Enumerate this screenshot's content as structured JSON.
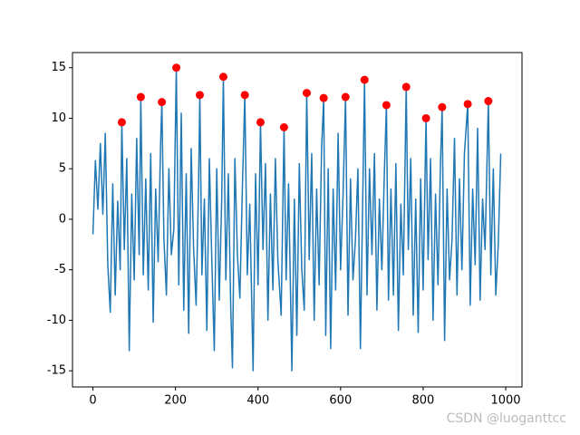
{
  "chart_data": {
    "type": "line",
    "xlim": [
      -49.5,
      1039.5
    ],
    "xticks": [
      0,
      200,
      400,
      600,
      800,
      1000
    ],
    "ylim": [
      -16.6,
      16.5
    ],
    "yticks": [
      -15,
      -10,
      -5,
      0,
      5,
      10,
      15
    ],
    "grid": false,
    "series": [
      {
        "color": "#1f77b4",
        "kind": "line",
        "x": [
          0,
          6,
          12,
          18,
          24,
          30,
          36,
          42,
          48,
          54,
          60,
          66,
          70,
          76,
          82,
          88,
          94,
          100,
          106,
          112,
          116,
          122,
          128,
          134,
          140,
          146,
          152,
          158,
          164,
          167,
          172,
          178,
          184,
          190,
          196,
          202,
          208,
          214,
          220,
          226,
          232,
          238,
          244,
          250,
          256,
          259,
          264,
          270,
          276,
          282,
          288,
          294,
          300,
          306,
          312,
          316,
          322,
          328,
          334,
          338,
          344,
          350,
          356,
          362,
          368,
          374,
          380,
          388,
          394,
          400,
          406,
          412,
          418,
          424,
          430,
          436,
          442,
          448,
          456,
          463,
          468,
          474,
          482,
          488,
          494,
          500,
          506,
          512,
          518,
          524,
          530,
          536,
          542,
          548,
          554,
          559,
          564,
          570,
          576,
          582,
          588,
          594,
          600,
          606,
          612,
          618,
          624,
          630,
          636,
          642,
          648,
          654,
          658,
          664,
          670,
          676,
          682,
          688,
          694,
          700,
          706,
          711,
          716,
          722,
          728,
          734,
          740,
          746,
          752,
          759,
          764,
          770,
          776,
          782,
          788,
          794,
          800,
          807,
          812,
          818,
          824,
          830,
          836,
          842,
          846,
          852,
          858,
          864,
          870,
          876,
          882,
          888,
          894,
          900,
          908,
          914,
          920,
          926,
          932,
          938,
          944,
          950,
          958,
          964,
          970,
          976,
          982,
          988
        ],
        "values": [
          -1.5,
          5.8,
          1.0,
          7.5,
          0.5,
          8.5,
          -4.5,
          -9.2,
          3.5,
          -7.5,
          1.8,
          -5.0,
          9.6,
          -3.0,
          6.0,
          -13.0,
          2.5,
          -6.0,
          8.0,
          -3.5,
          12.1,
          -5.5,
          4.0,
          -7.0,
          6.5,
          -10.2,
          3.0,
          -4.2,
          7.5,
          11.6,
          -2.0,
          -7.5,
          5.0,
          -3.5,
          -1.0,
          15.0,
          -6.5,
          10.5,
          -9.0,
          4.5,
          -11.3,
          7.0,
          -3.0,
          -8.5,
          3.5,
          12.3,
          -5.5,
          2.0,
          -11.0,
          6.0,
          -4.0,
          -13.0,
          5.0,
          -8.0,
          2.0,
          14.1,
          -6.0,
          4.5,
          -9.0,
          -14.7,
          6.0,
          -3.5,
          -7.8,
          3.0,
          12.3,
          -5.5,
          1.5,
          -15.0,
          4.5,
          -6.5,
          9.6,
          -3.0,
          5.5,
          -10.0,
          2.5,
          -7.0,
          6.0,
          -4.0,
          -9.5,
          9.1,
          -6.0,
          3.5,
          -15.0,
          2.0,
          -11.5,
          5.5,
          -5.0,
          -9.0,
          12.5,
          -4.0,
          6.5,
          -10.0,
          3.0,
          -6.5,
          7.0,
          12.0,
          -11.5,
          5.0,
          -12.8,
          3.0,
          -7.0,
          8.5,
          -5.0,
          2.5,
          12.1,
          -9.5,
          4.0,
          -6.0,
          -2.0,
          5.0,
          -12.8,
          3.0,
          13.8,
          -7.5,
          5.0,
          -3.5,
          6.5,
          -9.0,
          2.0,
          -5.0,
          4.5,
          11.3,
          -8.0,
          3.0,
          -7.5,
          5.5,
          -11.0,
          1.5,
          -5.5,
          13.1,
          -3.0,
          6.0,
          -9.5,
          2.0,
          -11.2,
          4.0,
          -7.0,
          10.0,
          -4.0,
          6.0,
          -10.0,
          2.5,
          -6.5,
          5.5,
          11.1,
          -12.0,
          3.0,
          -6.0,
          -2.0,
          8.0,
          -7.5,
          4.0,
          -5.0,
          6.5,
          11.4,
          -8.5,
          3.0,
          -4.5,
          9.0,
          -8.0,
          2.0,
          -3.0,
          11.7,
          -5.5,
          5.0,
          -7.5,
          -2.5,
          6.5
        ]
      },
      {
        "color": "#ff0000",
        "kind": "scatter",
        "x": [
          70,
          116,
          167,
          202,
          259,
          316,
          368,
          406,
          463,
          518,
          559,
          612,
          658,
          711,
          759,
          807,
          846,
          908,
          958
        ],
        "values": [
          9.6,
          12.1,
          11.6,
          15.0,
          12.3,
          14.1,
          12.3,
          9.6,
          9.1,
          12.5,
          12.0,
          12.1,
          13.8,
          11.3,
          13.1,
          10.0,
          11.1,
          11.4,
          11.7
        ]
      }
    ],
    "watermark": "CSDN @luoganttcc"
  }
}
